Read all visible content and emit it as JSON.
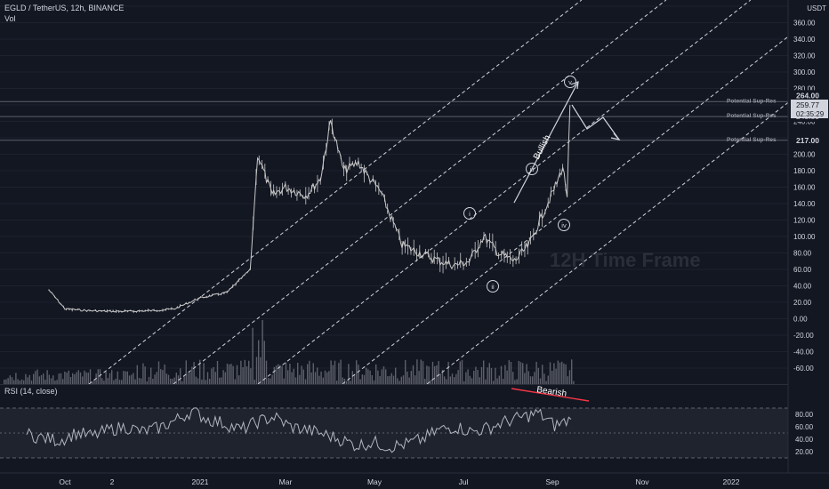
{
  "header": {
    "symbol_line": "EGLD / TetherUS, 12h, BINANCE",
    "volume_label": "Vol"
  },
  "watermark": "12H Time Frame",
  "price_axis": {
    "currency": "USDT",
    "ticks": [
      "380.00",
      "360.00",
      "340.00",
      "320.00",
      "300.00",
      "280.00",
      "260.00",
      "240.00",
      "220.00",
      "200.00",
      "180.00",
      "160.00",
      "140.00",
      "120.00",
      "100.00",
      "80.00",
      "60.00",
      "40.00",
      "20.00",
      "0.00",
      "-20.00",
      "-40.00",
      "-60.00"
    ],
    "current_price": "259.77",
    "countdown": "02:35:29"
  },
  "levels": [
    {
      "label": "Potential Sup-Res",
      "price_label": "264.00",
      "value": 264
    },
    {
      "label": "Potential Sup-Res",
      "price_label": "245.80",
      "value": 245.8
    },
    {
      "label": "Potential Sup-Res",
      "price_label": "217.00",
      "value": 217
    }
  ],
  "time_axis": {
    "labels": [
      "Oct",
      "2",
      "2021",
      "Mar",
      "May",
      "Jul",
      "Sep",
      "Nov",
      "2022"
    ]
  },
  "rsi_panel": {
    "title": "RSI (14, close)",
    "ticks": [
      "80.00",
      "60.00",
      "40.00",
      "20.00"
    ],
    "upper_band": 70,
    "lower_band": 30
  },
  "annotations": {
    "wave_labels": [
      "i",
      "ii",
      "iii",
      "iv",
      "v"
    ],
    "bullish": "Bullish",
    "bearish": "Bearish"
  },
  "colors": {
    "background": "#131722",
    "grid": "#1e222d",
    "candles": "#c8c8c8",
    "volume": "#5d606b",
    "channel": "#d1d4dc",
    "rsi_line": "#b2b5be",
    "rsi_band": "#2a2e39",
    "bearish_line": "#f23645",
    "price_tag_bg": "#d1d4dc",
    "price_tag_text": "#131722"
  },
  "chart_data": {
    "type": "line",
    "title": "EGLD / TetherUS, 12h, BINANCE",
    "x_axis": "time (2020-09 to 2022-01)",
    "series": [
      {
        "name": "EGLD / TetherUS",
        "x": [
          "2020-09-20",
          "2020-10-01",
          "2020-10-15",
          "2020-11-01",
          "2020-11-15",
          "2020-12-01",
          "2020-12-15",
          "2021-01-01",
          "2021-01-20",
          "2021-02-05",
          "2021-02-10",
          "2021-02-20",
          "2021-03-01",
          "2021-03-15",
          "2021-03-25",
          "2021-04-01",
          "2021-04-10",
          "2021-04-20",
          "2021-04-28",
          "2021-05-05",
          "2021-05-20",
          "2021-06-01",
          "2021-06-15",
          "2021-06-25",
          "2021-07-05",
          "2021-07-15",
          "2021-07-25",
          "2021-08-05",
          "2021-08-15",
          "2021-08-25",
          "2021-09-03",
          "2021-09-07",
          "2021-09-10",
          "2021-09-12"
        ],
        "values": [
          35,
          12,
          10,
          9,
          9,
          10,
          12,
          25,
          32,
          60,
          200,
          150,
          160,
          150,
          170,
          240,
          180,
          190,
          170,
          155,
          90,
          80,
          70,
          65,
          70,
          100,
          80,
          70,
          90,
          130,
          165,
          185,
          150,
          259.77
        ]
      }
    ],
    "ylim": [
      -70,
      390
    ],
    "yaxis_ticks": [
      380,
      360,
      340,
      320,
      300,
      280,
      260,
      240,
      220,
      200,
      180,
      160,
      140,
      120,
      100,
      80,
      60,
      40,
      20,
      0,
      -20,
      -40,
      -60
    ],
    "horizontal_levels": [
      264,
      245.8,
      217
    ],
    "rsi": {
      "name": "RSI (14, close)",
      "ylim": [
        15,
        95
      ],
      "bands": [
        30,
        70
      ],
      "values": [
        48,
        42,
        38,
        50,
        45,
        55,
        60,
        52,
        58,
        70,
        85,
        72,
        65,
        55,
        68,
        76,
        60,
        55,
        48,
        40,
        30,
        35,
        28,
        32,
        40,
        55,
        60,
        52,
        58,
        68,
        75,
        82,
        62,
        72
      ]
    }
  }
}
